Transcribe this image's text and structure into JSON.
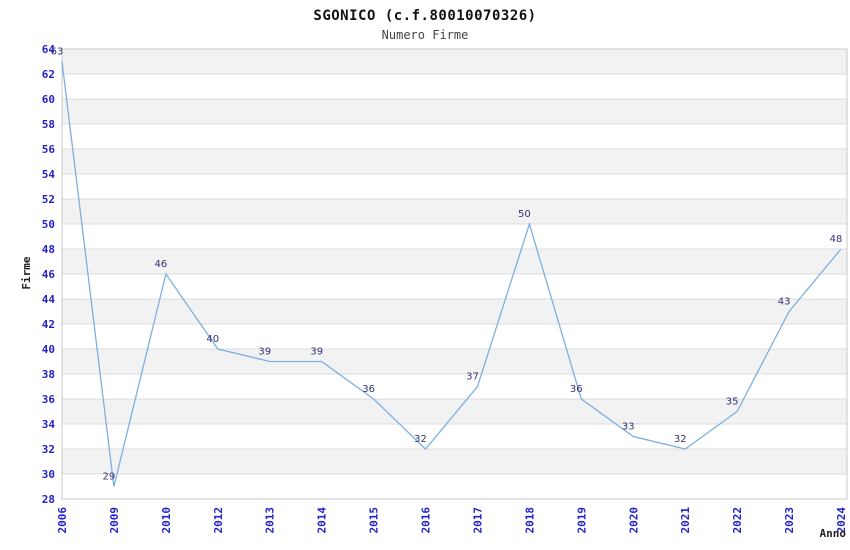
{
  "chart_data": {
    "type": "line",
    "title": "SGONICO (c.f.80010070326)",
    "subtitle": "Numero Firme",
    "xlabel": "Anno",
    "ylabel": "Firme",
    "categories": [
      "2006",
      "2009",
      "2010",
      "2012",
      "2013",
      "2014",
      "2015",
      "2016",
      "2017",
      "2018",
      "2019",
      "2020",
      "2021",
      "2022",
      "2023",
      "2024"
    ],
    "values": [
      63,
      29,
      46,
      40,
      39,
      39,
      36,
      32,
      37,
      50,
      36,
      33,
      32,
      35,
      43,
      48
    ],
    "ylim": [
      28,
      64
    ],
    "ytick_step": 2,
    "grid": "horizontal-gridlines-with-alternating-bands",
    "legend": "none",
    "colors": {
      "line": "#7cb0e0",
      "tick_label": "#2222cc",
      "point_label": "#333377",
      "band": "#f2f2f2",
      "gridline": "#dcdcdc",
      "plot_border": "#c8c8c8",
      "title": "#111111",
      "subtitle": "#444444",
      "axis_title": "#222222",
      "background": "#ffffff"
    }
  }
}
